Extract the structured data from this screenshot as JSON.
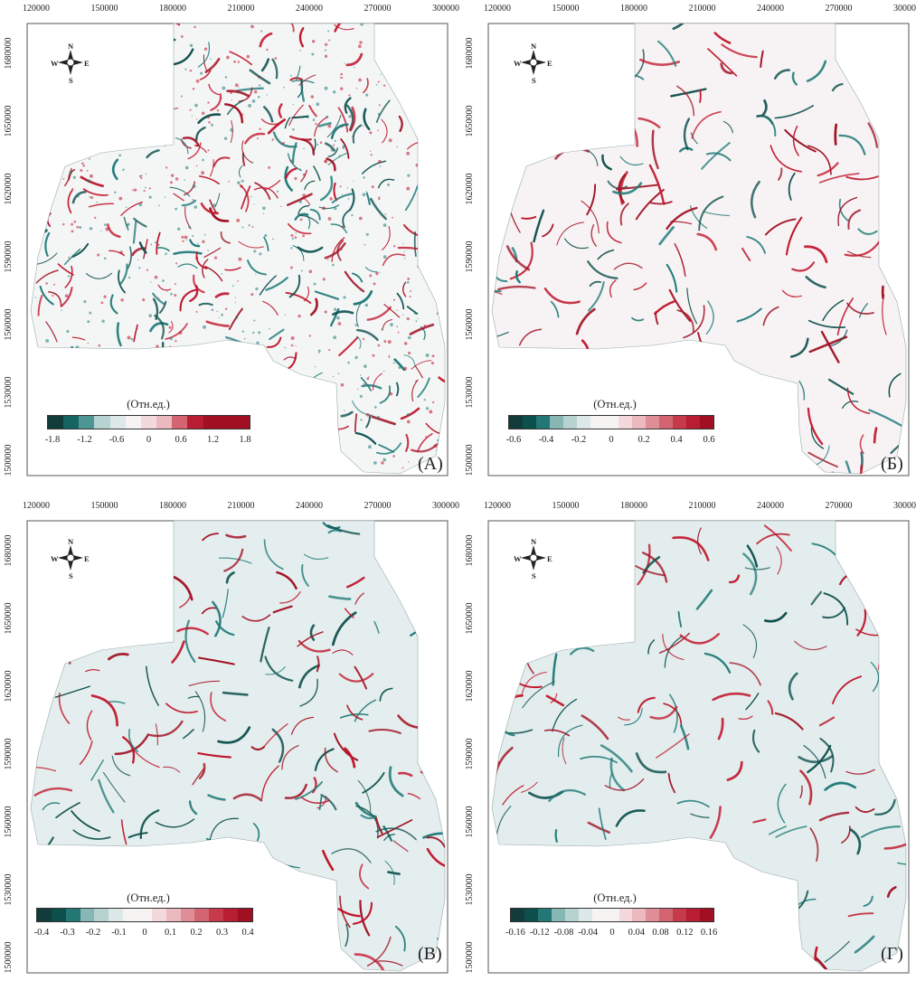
{
  "x_ticks": [
    "120000",
    "150000",
    "180000",
    "210000",
    "240000",
    "270000",
    "300000"
  ],
  "y_ticks": [
    "1680000",
    "1650000",
    "1620000",
    "1590000",
    "1560000",
    "1530000",
    "1500000"
  ],
  "compass": {
    "n": "N",
    "s": "S",
    "e": "E",
    "w": "W"
  },
  "unit_label": "(Отн.ед.)",
  "colors": {
    "dark_teal": "#0d4f4c",
    "teal": "#1f7a78",
    "light": "#e8f1f1",
    "red": "#c0142a",
    "dark_red": "#a00f22"
  },
  "panels": [
    {
      "id": "A",
      "label": "(A)",
      "ticks": [
        "-1.8",
        "-1.2",
        "-0.6",
        "0",
        "0.6",
        "1.2",
        "1.8"
      ]
    },
    {
      "id": "B",
      "label": "(Б)",
      "ticks": [
        "-0.6",
        "-0.4",
        "-0.2",
        "0",
        "0.2",
        "0.4",
        "0.6"
      ]
    },
    {
      "id": "C",
      "label": "(B)",
      "ticks": [
        "-0.4",
        "-0.3",
        "-0.2",
        "-0.1",
        "0",
        "0.1",
        "0.2",
        "0.3",
        "0.4"
      ]
    },
    {
      "id": "D",
      "label": "(Г)",
      "ticks": [
        "-0.16",
        "-0.12",
        "-0.08",
        "-0.04",
        "0",
        "0.04",
        "0.08",
        "0.12",
        "0.16"
      ]
    }
  ]
}
